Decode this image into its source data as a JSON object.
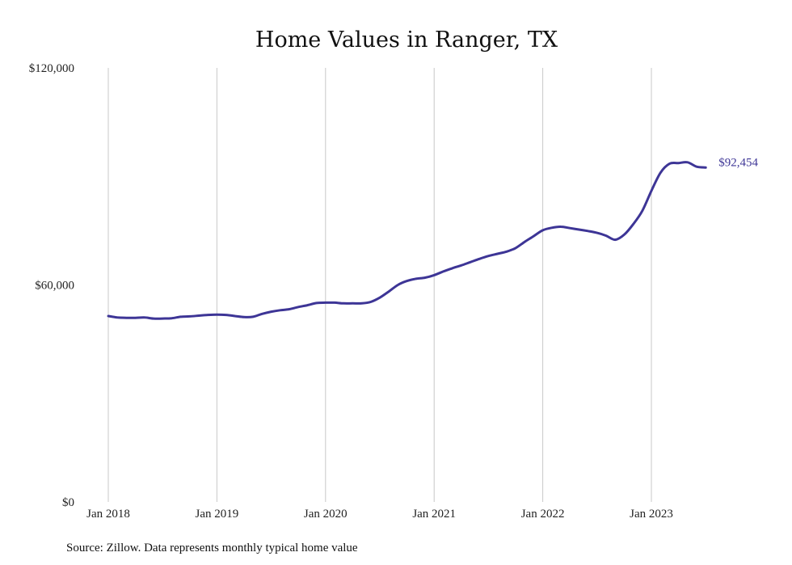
{
  "source_note": "Source: Zillow. Data represents monthly typical home value",
  "colors": {
    "line": "#3d3596",
    "grid": "#c8c8c8",
    "text": "#222222"
  },
  "chart_data": {
    "type": "line",
    "title": "Home Values in Ranger, TX",
    "xlabel": "",
    "ylabel": "",
    "ylim": [
      0,
      120000
    ],
    "y_ticks": [
      {
        "value": 0,
        "label": "$0"
      },
      {
        "value": 60000,
        "label": "$60,000"
      },
      {
        "value": 120000,
        "label": "$120,000"
      }
    ],
    "x_ticks": [
      {
        "value": "2018-01",
        "label": "Jan 2018"
      },
      {
        "value": "2019-01",
        "label": "Jan 2019"
      },
      {
        "value": "2020-01",
        "label": "Jan 2020"
      },
      {
        "value": "2021-01",
        "label": "Jan 2021"
      },
      {
        "value": "2022-01",
        "label": "Jan 2022"
      },
      {
        "value": "2023-01",
        "label": "Jan 2023"
      }
    ],
    "grid": {
      "vertical": true,
      "horizontal": false
    },
    "end_label": "$92,454",
    "series": [
      {
        "x": [
          "2018-01",
          "2018-02",
          "2018-03",
          "2018-04",
          "2018-05",
          "2018-06",
          "2018-07",
          "2018-08",
          "2018-09",
          "2018-10",
          "2018-11",
          "2018-12",
          "2019-01",
          "2019-02",
          "2019-03",
          "2019-04",
          "2019-05",
          "2019-06",
          "2019-07",
          "2019-08",
          "2019-09",
          "2019-10",
          "2019-11",
          "2019-12",
          "2020-01",
          "2020-02",
          "2020-03",
          "2020-04",
          "2020-05",
          "2020-06",
          "2020-07",
          "2020-08",
          "2020-09",
          "2020-10",
          "2020-11",
          "2020-12",
          "2021-01",
          "2021-02",
          "2021-03",
          "2021-04",
          "2021-05",
          "2021-06",
          "2021-07",
          "2021-08",
          "2021-09",
          "2021-10",
          "2021-11",
          "2021-12",
          "2022-01",
          "2022-02",
          "2022-03",
          "2022-04",
          "2022-05",
          "2022-06",
          "2022-07",
          "2022-08",
          "2022-09",
          "2022-10",
          "2022-11",
          "2022-12",
          "2023-01",
          "2023-02",
          "2023-03",
          "2023-04",
          "2023-05",
          "2023-06",
          "2023-07"
        ],
        "values": [
          51400,
          51000,
          50900,
          50900,
          51000,
          50700,
          50700,
          50800,
          51200,
          51300,
          51500,
          51700,
          51800,
          51700,
          51400,
          51100,
          51200,
          52000,
          52600,
          53000,
          53300,
          53900,
          54400,
          55000,
          55100,
          55100,
          54900,
          54900,
          54900,
          55300,
          56500,
          58200,
          60000,
          61100,
          61700,
          62000,
          62700,
          63700,
          64600,
          65400,
          66300,
          67200,
          68000,
          68600,
          69200,
          70200,
          71900,
          73500,
          75100,
          75800,
          76100,
          75700,
          75300,
          74900,
          74400,
          73600,
          72500,
          73900,
          76800,
          80500,
          86000,
          91000,
          93500,
          93700,
          93900,
          92700,
          92454
        ]
      }
    ]
  }
}
